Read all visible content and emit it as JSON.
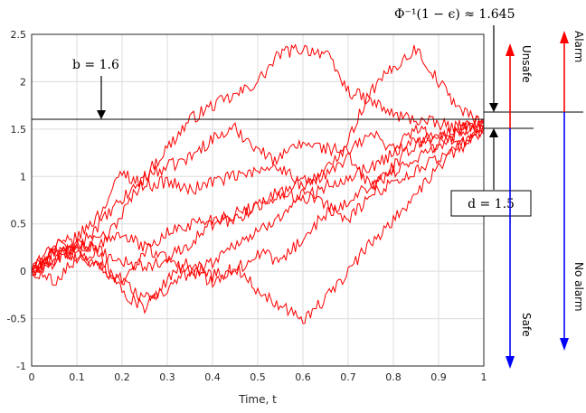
{
  "chart_data": {
    "type": "line",
    "xlabel": "Time, t",
    "ylabel": "",
    "xlim": [
      0,
      1
    ],
    "ylim": [
      -1,
      2.5
    ],
    "xticks": [
      "0",
      "0.1",
      "0.2",
      "0.3",
      "0.4",
      "0.5",
      "0.6",
      "0.7",
      "0.8",
      "0.9",
      "1"
    ],
    "yticks": [
      "-1",
      "-0.5",
      "0",
      "0.5",
      "1",
      "1.5",
      "2",
      "2.5"
    ],
    "grid": true,
    "line_color": "#ff0000",
    "series": [
      {
        "x": [
          0,
          0.05,
          0.1,
          0.15,
          0.2,
          0.25,
          0.3,
          0.35,
          0.4,
          0.45,
          0.5,
          0.55,
          0.6,
          0.65,
          0.7,
          0.75,
          0.8,
          0.85,
          0.9,
          0.95,
          1.0
        ],
        "y": [
          0,
          0.15,
          0.3,
          0.25,
          0.6,
          1.0,
          1.3,
          1.6,
          1.75,
          1.85,
          2.0,
          2.3,
          2.35,
          2.3,
          1.9,
          1.8,
          1.65,
          1.6,
          1.55,
          1.5,
          1.55
        ]
      },
      {
        "x": [
          0,
          0.05,
          0.1,
          0.15,
          0.2,
          0.25,
          0.3,
          0.35,
          0.4,
          0.45,
          0.5,
          0.55,
          0.6,
          0.65,
          0.7,
          0.75,
          0.8,
          0.85,
          0.9,
          0.95,
          1.0
        ],
        "y": [
          0,
          0.2,
          0.25,
          0.5,
          0.75,
          1.0,
          1.1,
          1.2,
          1.4,
          1.5,
          1.3,
          1.1,
          0.9,
          1.05,
          1.4,
          1.9,
          2.15,
          2.35,
          2.0,
          1.7,
          1.55
        ]
      },
      {
        "x": [
          0,
          0.05,
          0.1,
          0.15,
          0.2,
          0.25,
          0.3,
          0.35,
          0.4,
          0.45,
          0.5,
          0.55,
          0.6,
          0.65,
          0.7,
          0.75,
          0.8,
          0.85,
          0.9,
          0.95,
          1.0
        ],
        "y": [
          0,
          0.25,
          0.35,
          0.6,
          1.05,
          0.9,
          0.95,
          0.85,
          0.95,
          1.0,
          1.05,
          1.2,
          1.35,
          1.3,
          1.25,
          1.45,
          1.3,
          1.5,
          1.4,
          1.55,
          1.5
        ]
      },
      {
        "x": [
          0,
          0.05,
          0.1,
          0.15,
          0.2,
          0.25,
          0.3,
          0.35,
          0.4,
          0.45,
          0.5,
          0.55,
          0.6,
          0.65,
          0.7,
          0.75,
          0.8,
          0.85,
          0.9,
          0.95,
          1.0
        ],
        "y": [
          0,
          0.3,
          0.2,
          0.05,
          -0.1,
          0.2,
          0.4,
          0.5,
          0.55,
          0.6,
          0.7,
          0.8,
          0.95,
          1.0,
          1.2,
          0.9,
          1.1,
          1.35,
          1.45,
          1.3,
          1.6
        ]
      },
      {
        "x": [
          0,
          0.05,
          0.1,
          0.15,
          0.2,
          0.25,
          0.3,
          0.35,
          0.4,
          0.45,
          0.5,
          0.55,
          0.6,
          0.65,
          0.7,
          0.75,
          0.8,
          0.85,
          0.9,
          0.95,
          1.0
        ],
        "y": [
          0,
          0.1,
          0.2,
          0.35,
          0.4,
          0.25,
          0.15,
          0.3,
          0.5,
          0.55,
          0.7,
          0.85,
          0.75,
          0.9,
          1.0,
          1.1,
          1.25,
          1.4,
          1.3,
          1.5,
          1.6
        ]
      },
      {
        "x": [
          0,
          0.05,
          0.1,
          0.15,
          0.2,
          0.25,
          0.3,
          0.35,
          0.4,
          0.45,
          0.5,
          0.55,
          0.6,
          0.65,
          0.7,
          0.75,
          0.8,
          0.85,
          0.9,
          0.95,
          1.0
        ],
        "y": [
          0,
          0.2,
          0.15,
          0.05,
          -0.1,
          -0.3,
          -0.2,
          0.0,
          0.1,
          0.3,
          0.4,
          0.6,
          0.8,
          0.7,
          0.55,
          0.8,
          0.95,
          1.05,
          1.2,
          1.35,
          1.45
        ]
      },
      {
        "x": [
          0,
          0.05,
          0.1,
          0.15,
          0.2,
          0.25,
          0.3,
          0.35,
          0.4,
          0.45,
          0.5,
          0.55,
          0.6,
          0.65,
          0.7,
          0.75,
          0.8,
          0.85,
          0.9,
          0.95,
          1.0
        ],
        "y": [
          0,
          0.1,
          0.3,
          0.2,
          0.1,
          0.05,
          0.1,
          0.0,
          -0.1,
          0.05,
          -0.2,
          -0.35,
          -0.5,
          -0.3,
          0.0,
          0.3,
          0.55,
          0.8,
          1.1,
          1.35,
          1.5
        ]
      },
      {
        "x": [
          0,
          0.05,
          0.1,
          0.15,
          0.2,
          0.25,
          0.3,
          0.35,
          0.4,
          0.45,
          0.5,
          0.55,
          0.6,
          0.65,
          0.7,
          0.75,
          0.8,
          0.85,
          0.9,
          0.95,
          1.0
        ],
        "y": [
          0,
          -0.1,
          0.15,
          0.2,
          -0.2,
          -0.4,
          -0.1,
          0.1,
          -0.05,
          0.0,
          0.2,
          0.1,
          0.35,
          0.6,
          0.75,
          0.9,
          1.05,
          1.2,
          1.35,
          1.5,
          1.55
        ]
      }
    ],
    "annotations": {
      "b_line": {
        "y": 1.6,
        "label": "b = 1.6"
      },
      "d_line": {
        "y": 1.5,
        "label": "d = 1.5"
      },
      "phi_label": "Φ⁻¹(1 − ϵ) ≈ 1.645",
      "unsafe_label": "Unsafe",
      "safe_label": "Safe",
      "alarm_label": "Alarm",
      "no_alarm_label": "No alarm",
      "color_red": "#ff0000",
      "color_blue": "#0000ff"
    }
  }
}
